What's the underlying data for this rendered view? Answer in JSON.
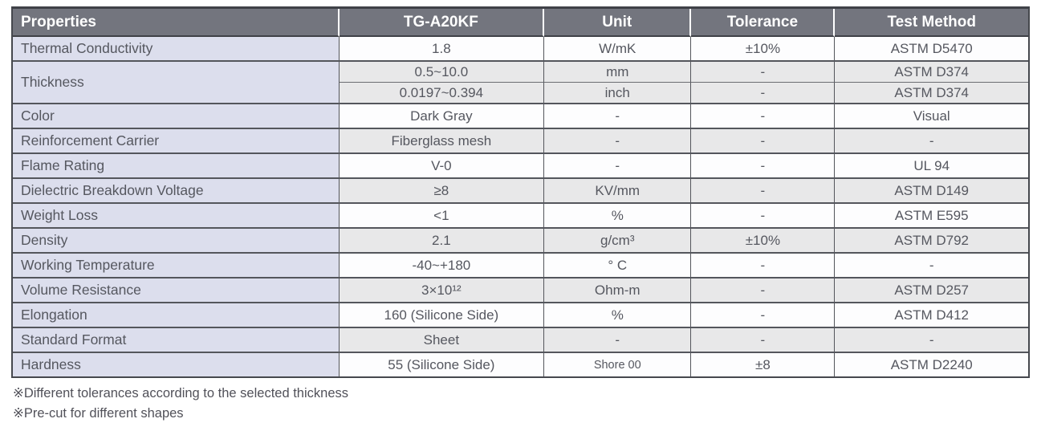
{
  "table": {
    "columns": [
      "Properties",
      "TG-A20KF",
      "Unit",
      "Tolerance",
      "Test Method"
    ],
    "rows": [
      {
        "property": "Thermal Conductivity",
        "shade": "white",
        "cells": [
          [
            "1.8",
            "W/mK",
            "±10%",
            "ASTM D5470"
          ]
        ]
      },
      {
        "property": "Thickness",
        "shade": "gray",
        "cells": [
          [
            "0.5~10.0",
            "mm",
            "-",
            "ASTM D374"
          ],
          [
            "0.0197~0.394",
            "inch",
            "-",
            "ASTM D374"
          ]
        ]
      },
      {
        "property": "Color",
        "shade": "white",
        "cells": [
          [
            "Dark Gray",
            "-",
            "-",
            "Visual"
          ]
        ]
      },
      {
        "property": "Reinforcement Carrier",
        "shade": "gray",
        "cells": [
          [
            "Fiberglass mesh",
            "-",
            "-",
            "-"
          ]
        ]
      },
      {
        "property": "Flame Rating",
        "shade": "white",
        "cells": [
          [
            "V-0",
            "-",
            "-",
            "UL 94"
          ]
        ]
      },
      {
        "property": "Dielectric Breakdown Voltage",
        "shade": "gray",
        "cells": [
          [
            "≥8",
            "KV/mm",
            "-",
            "ASTM D149"
          ]
        ]
      },
      {
        "property": "Weight Loss",
        "shade": "white",
        "cells": [
          [
            "<1",
            "%",
            "-",
            "ASTM E595"
          ]
        ]
      },
      {
        "property": "Density",
        "shade": "gray",
        "cells": [
          [
            "2.1",
            "g/cm³",
            "±10%",
            "ASTM D792"
          ]
        ]
      },
      {
        "property": "Working Temperature",
        "shade": "white",
        "cells": [
          [
            "-40~+180",
            "° C",
            "-",
            "-"
          ]
        ]
      },
      {
        "property": "Volume Resistance",
        "shade": "gray",
        "cells": [
          [
            "3×10¹²",
            "Ohm-m",
            "-",
            "ASTM D257"
          ]
        ]
      },
      {
        "property": "Elongation",
        "shade": "white",
        "cells": [
          [
            "160 (Silicone Side)",
            "%",
            "-",
            "ASTM D412"
          ]
        ]
      },
      {
        "property": "Standard Format",
        "shade": "gray",
        "cells": [
          [
            "Sheet",
            "-",
            "-",
            "-"
          ]
        ]
      },
      {
        "property": "Hardness",
        "shade": "white",
        "unit_small": true,
        "cells": [
          [
            "55 (Silicone Side)",
            "Shore 00",
            "±8",
            "ASTM D2240"
          ]
        ]
      }
    ]
  },
  "notes": [
    "※Different tolerances according to the selected thickness",
    "※Pre-cut for different shapes"
  ]
}
